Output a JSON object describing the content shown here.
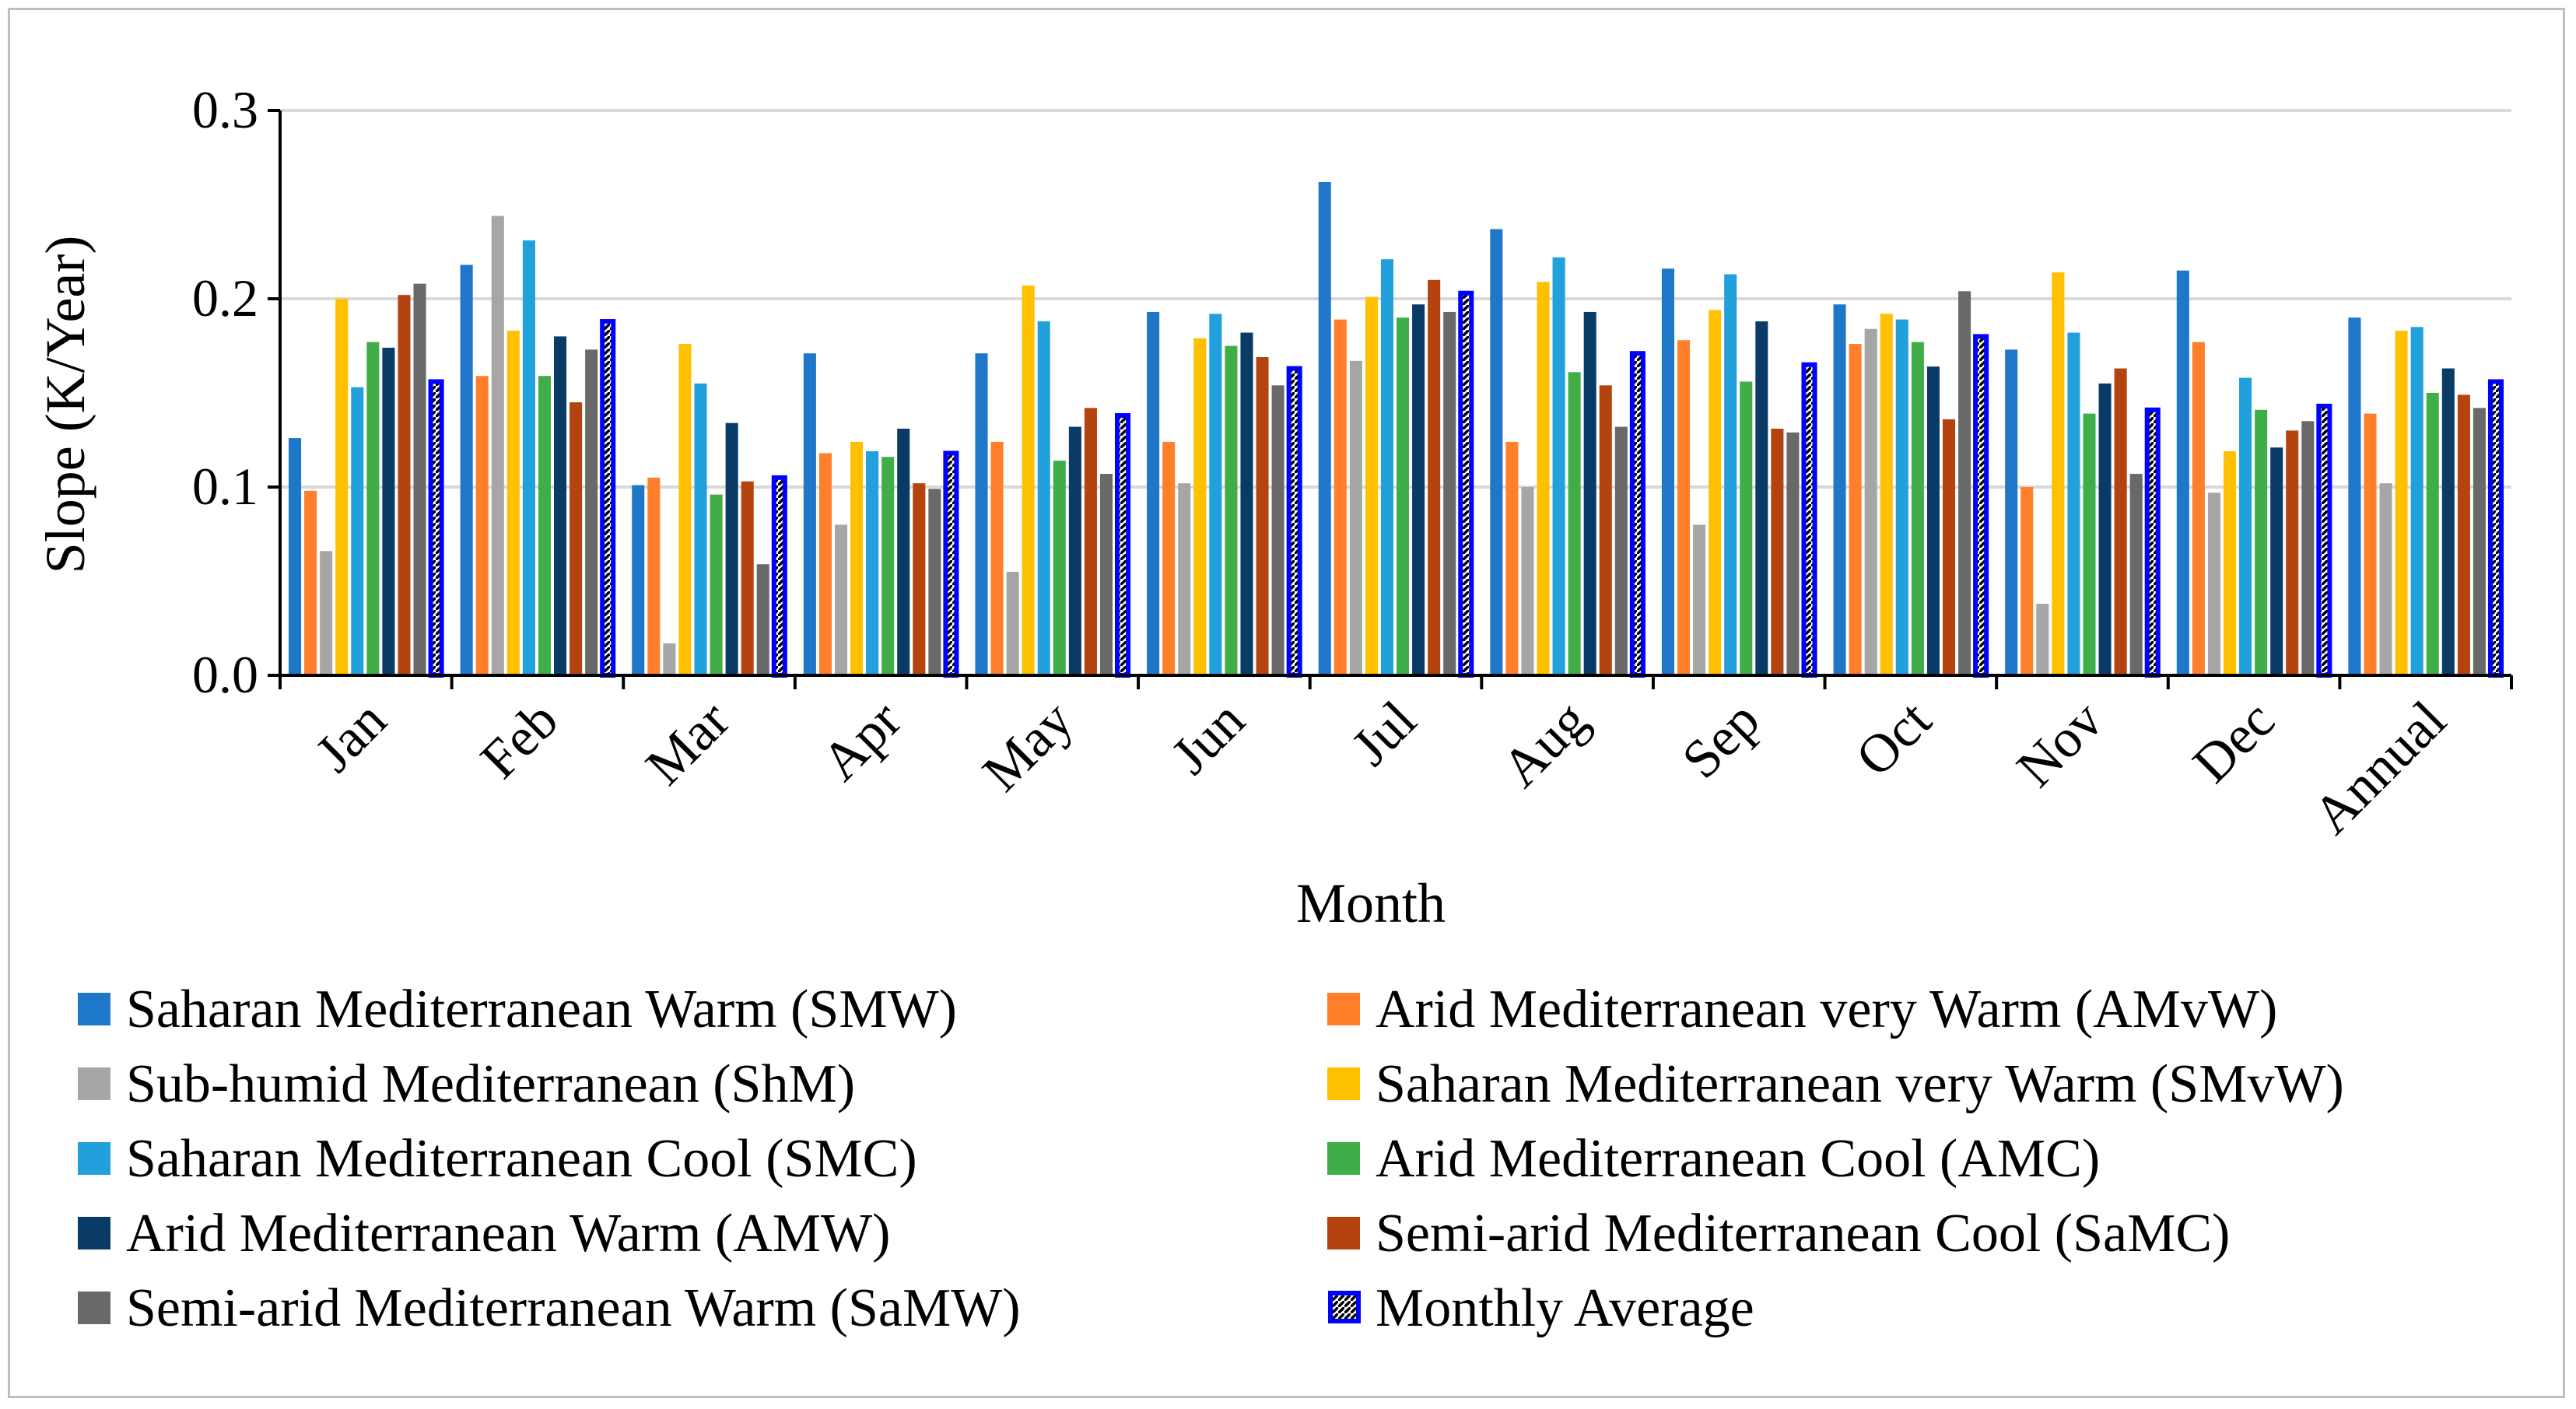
{
  "chart_data": {
    "type": "bar",
    "xlabel": "Month",
    "ylabel": "Slope (K/Year)",
    "ylim": [
      0,
      0.3
    ],
    "yticks": [
      "0.0",
      "0.1",
      "0.2",
      "0.3"
    ],
    "grid": "horizontal",
    "legend_position": "bottom",
    "categories": [
      "Jan",
      "Feb",
      "Mar",
      "Apr",
      "May",
      "Jun",
      "Jul",
      "Aug",
      "Sep",
      "Oct",
      "Nov",
      "Dec",
      "Annual"
    ],
    "series": [
      {
        "name": "Saharan Mediterranean Warm (SMW)",
        "color": "#1f77c9",
        "values": [
          0.126,
          0.218,
          0.101,
          0.171,
          0.171,
          0.193,
          0.262,
          0.237,
          0.216,
          0.197,
          0.173,
          0.215,
          0.19
        ]
      },
      {
        "name": "Arid Mediterranean very Warm (AMvW)",
        "color": "#ff7f2a",
        "values": [
          0.098,
          0.159,
          0.105,
          0.118,
          0.124,
          0.124,
          0.189,
          0.124,
          0.178,
          0.176,
          0.1,
          0.177,
          0.139
        ]
      },
      {
        "name": "Sub-humid Mediterranean (ShM)",
        "color": "#a6a6a6",
        "values": [
          0.066,
          0.244,
          0.017,
          0.08,
          0.055,
          0.102,
          0.167,
          0.1,
          0.08,
          0.184,
          0.038,
          0.097,
          0.102
        ]
      },
      {
        "name": "Saharan Mediterranean very Warm (SMvW)",
        "color": "#ffc000",
        "values": [
          0.2,
          0.183,
          0.176,
          0.124,
          0.207,
          0.179,
          0.201,
          0.209,
          0.194,
          0.192,
          0.214,
          0.119,
          0.183
        ]
      },
      {
        "name": "Saharan Mediterranean Cool (SMC)",
        "color": "#22a0dc",
        "values": [
          0.153,
          0.231,
          0.155,
          0.119,
          0.188,
          0.192,
          0.221,
          0.222,
          0.213,
          0.189,
          0.182,
          0.158,
          0.185
        ]
      },
      {
        "name": "Arid Mediterranean Cool (AMC)",
        "color": "#3fae49",
        "values": [
          0.177,
          0.159,
          0.096,
          0.116,
          0.114,
          0.175,
          0.19,
          0.161,
          0.156,
          0.177,
          0.139,
          0.141,
          0.15
        ]
      },
      {
        "name": "Arid Mediterranean Warm (AMW)",
        "color": "#0a3b66",
        "values": [
          0.174,
          0.18,
          0.134,
          0.131,
          0.132,
          0.182,
          0.197,
          0.193,
          0.188,
          0.164,
          0.155,
          0.121,
          0.163
        ]
      },
      {
        "name": "Semi-arid Mediterranean Cool (SaMC)",
        "color": "#b5430f",
        "values": [
          0.202,
          0.145,
          0.103,
          0.102,
          0.142,
          0.169,
          0.21,
          0.154,
          0.131,
          0.136,
          0.163,
          0.13,
          0.149
        ]
      },
      {
        "name": "Semi-arid Mediterranean Warm (SaMW)",
        "color": "#696969",
        "values": [
          0.208,
          0.173,
          0.059,
          0.099,
          0.107,
          0.154,
          0.193,
          0.132,
          0.129,
          0.204,
          0.107,
          0.135,
          0.142
        ]
      },
      {
        "name": "Monthly Average",
        "color": "#0000ff",
        "values": [
          0.156,
          0.188,
          0.105,
          0.118,
          0.138,
          0.163,
          0.203,
          0.171,
          0.165,
          0.18,
          0.141,
          0.143,
          0.156
        ]
      }
    ]
  }
}
